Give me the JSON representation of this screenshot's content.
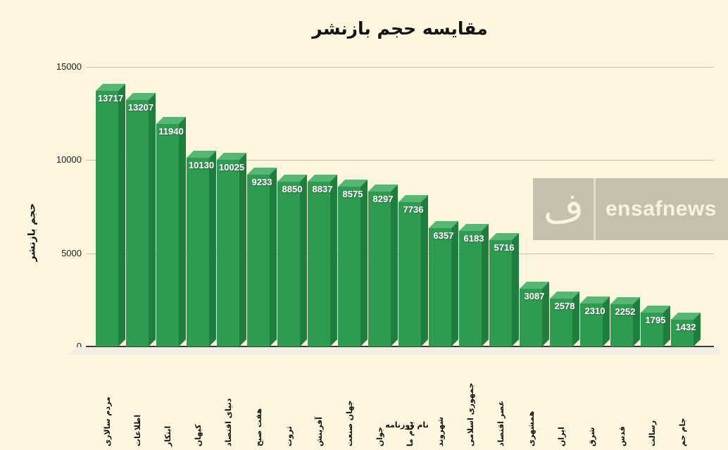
{
  "title": "مقايسه حجم بازنشر",
  "watermark": {
    "brand": "ensafnews",
    "logo_letter": "ف"
  },
  "chart_data": {
    "type": "bar",
    "title": "مقايسه حجم بازنشر",
    "xlabel": "نام روزنامه",
    "ylabel": "حجم بازنشر",
    "ylim": [
      0,
      15000
    ],
    "yticks": [
      0,
      5000,
      10000,
      15000
    ],
    "grid": true,
    "legend": "none",
    "style_3d": true,
    "bar_color_front": "#2d9c51",
    "bar_color_top": "#57b674",
    "bar_color_side": "#1e7e3d",
    "background_color": "#fdf5de",
    "value_label_color": "#ffffff",
    "categories": [
      "مردم سالاری",
      "اطلاعات",
      "ابتکار",
      "کیهان",
      "دنیای اقتصاد",
      "هفت صبح",
      "ثروت",
      "آفرینش",
      "جهان صنعت",
      "جوان",
      "پیام ما",
      "شهروند",
      "جمهوری اسلامی",
      "عصر اقتصاد",
      "همشهری",
      "ایران",
      "شرق",
      "قدس",
      "رسالت",
      "جام جم"
    ],
    "values": [
      13717,
      13207,
      11940,
      10130,
      10025,
      9233,
      8850,
      8837,
      8575,
      8297,
      7736,
      6357,
      6183,
      5716,
      3087,
      2578,
      2310,
      2252,
      1795,
      1432
    ]
  }
}
